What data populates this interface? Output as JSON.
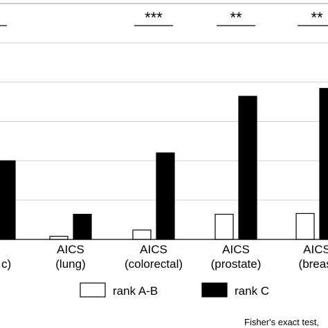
{
  "chart_data": {
    "type": "bar",
    "title": "",
    "xlabel": "",
    "ylabel": "",
    "ylim": [
      0,
      30
    ],
    "grid": true,
    "categories": [
      [
        "",
        "c)"
      ],
      [
        "AICS",
        "(lung)"
      ],
      [
        "AICS",
        "(colorectal)"
      ],
      [
        "AICS",
        "(prostate)"
      ],
      [
        "AICS",
        "(breast"
      ]
    ],
    "series": [
      {
        "name": "rank A-B",
        "color": "#ffffff",
        "values": [
          null,
          0.4,
          1.2,
          3.2,
          3.3
        ]
      },
      {
        "name": "rank C",
        "color": "#000000",
        "values": [
          10.0,
          3.2,
          11.0,
          18.2,
          19.2
        ]
      }
    ],
    "significance": [
      "",
      "",
      "***",
      "**",
      "**"
    ],
    "footnote": "Fisher's exact test,"
  }
}
